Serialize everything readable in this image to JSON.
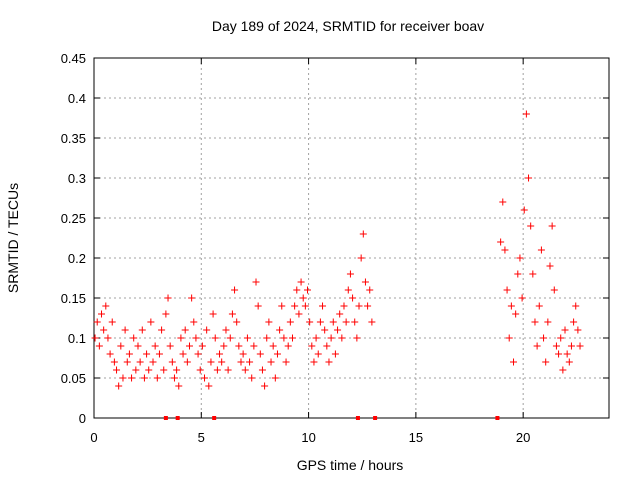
{
  "chart_data": {
    "type": "scatter",
    "title": "Day 189 of 2024, SRMTID for receiver boav",
    "xlabel": "GPS time / hours",
    "ylabel": "SRMTID / TECUs",
    "xlim": [
      0,
      24
    ],
    "ylim": [
      0,
      0.45
    ],
    "grid": true,
    "x_ticks": [
      0,
      5,
      10,
      15,
      20
    ],
    "x_tick_labels": [
      "0",
      "5",
      "10",
      "15",
      "20"
    ],
    "y_ticks": [
      0,
      0.05,
      0.1,
      0.15,
      0.2,
      0.25,
      0.3,
      0.35,
      0.4,
      0.45
    ],
    "y_tick_labels": [
      "0",
      "0.05",
      "0.1",
      "0.15",
      "0.2",
      "0.25",
      "0.3",
      "0.35",
      "0.4",
      "0.45"
    ],
    "marker": "+",
    "color": "#ff0000",
    "series": [
      {
        "name": "SRMTID",
        "points": [
          [
            0.05,
            0.1
          ],
          [
            0.15,
            0.12
          ],
          [
            0.25,
            0.09
          ],
          [
            0.35,
            0.13
          ],
          [
            0.45,
            0.11
          ],
          [
            0.55,
            0.14
          ],
          [
            0.65,
            0.1
          ],
          [
            0.75,
            0.08
          ],
          [
            0.85,
            0.12
          ],
          [
            0.95,
            0.07
          ],
          [
            1.05,
            0.06
          ],
          [
            1.15,
            0.04
          ],
          [
            1.25,
            0.09
          ],
          [
            1.35,
            0.05
          ],
          [
            1.45,
            0.11
          ],
          [
            1.55,
            0.07
          ],
          [
            1.65,
            0.08
          ],
          [
            1.75,
            0.05
          ],
          [
            1.85,
            0.1
          ],
          [
            1.95,
            0.06
          ],
          [
            2.05,
            0.09
          ],
          [
            2.15,
            0.07
          ],
          [
            2.25,
            0.11
          ],
          [
            2.35,
            0.05
          ],
          [
            2.45,
            0.08
          ],
          [
            2.55,
            0.06
          ],
          [
            2.65,
            0.12
          ],
          [
            2.75,
            0.07
          ],
          [
            2.85,
            0.09
          ],
          [
            2.95,
            0.05
          ],
          [
            3.05,
            0.08
          ],
          [
            3.15,
            0.11
          ],
          [
            3.25,
            0.06
          ],
          [
            3.35,
            0.13
          ],
          [
            3.45,
            0.15
          ],
          [
            3.55,
            0.09
          ],
          [
            3.65,
            0.07
          ],
          [
            3.75,
            0.05
          ],
          [
            3.85,
            0.06
          ],
          [
            3.95,
            0.04
          ],
          [
            4.05,
            0.1
          ],
          [
            4.15,
            0.08
          ],
          [
            4.25,
            0.11
          ],
          [
            4.35,
            0.07
          ],
          [
            4.45,
            0.09
          ],
          [
            4.55,
            0.15
          ],
          [
            4.65,
            0.12
          ],
          [
            4.75,
            0.1
          ],
          [
            4.85,
            0.08
          ],
          [
            4.95,
            0.06
          ],
          [
            5.05,
            0.09
          ],
          [
            5.15,
            0.05
          ],
          [
            5.25,
            0.11
          ],
          [
            5.35,
            0.04
          ],
          [
            5.45,
            0.07
          ],
          [
            5.55,
            0.13
          ],
          [
            5.65,
            0.1
          ],
          [
            5.75,
            0.06
          ],
          [
            5.85,
            0.08
          ],
          [
            5.95,
            0.07
          ],
          [
            6.05,
            0.09
          ],
          [
            6.15,
            0.11
          ],
          [
            6.25,
            0.06
          ],
          [
            6.35,
            0.1
          ],
          [
            6.45,
            0.13
          ],
          [
            6.55,
            0.16
          ],
          [
            6.65,
            0.12
          ],
          [
            6.75,
            0.09
          ],
          [
            6.85,
            0.07
          ],
          [
            6.95,
            0.08
          ],
          [
            7.05,
            0.06
          ],
          [
            7.15,
            0.1
          ],
          [
            7.25,
            0.07
          ],
          [
            7.35,
            0.05
          ],
          [
            7.45,
            0.09
          ],
          [
            7.55,
            0.17
          ],
          [
            7.65,
            0.14
          ],
          [
            7.75,
            0.08
          ],
          [
            7.85,
            0.06
          ],
          [
            7.95,
            0.04
          ],
          [
            8.05,
            0.1
          ],
          [
            8.15,
            0.12
          ],
          [
            8.25,
            0.07
          ],
          [
            8.35,
            0.09
          ],
          [
            8.45,
            0.05
          ],
          [
            8.55,
            0.08
          ],
          [
            8.65,
            0.11
          ],
          [
            8.75,
            0.14
          ],
          [
            8.85,
            0.1
          ],
          [
            8.95,
            0.07
          ],
          [
            9.05,
            0.09
          ],
          [
            9.15,
            0.12
          ],
          [
            9.25,
            0.1
          ],
          [
            9.35,
            0.14
          ],
          [
            9.45,
            0.16
          ],
          [
            9.55,
            0.13
          ],
          [
            9.65,
            0.17
          ],
          [
            9.75,
            0.15
          ],
          [
            9.85,
            0.14
          ],
          [
            9.95,
            0.16
          ],
          [
            10.05,
            0.12
          ],
          [
            10.15,
            0.09
          ],
          [
            10.25,
            0.07
          ],
          [
            10.35,
            0.1
          ],
          [
            10.45,
            0.08
          ],
          [
            10.55,
            0.12
          ],
          [
            10.65,
            0.14
          ],
          [
            10.75,
            0.11
          ],
          [
            10.85,
            0.09
          ],
          [
            10.95,
            0.07
          ],
          [
            11.05,
            0.1
          ],
          [
            11.15,
            0.12
          ],
          [
            11.25,
            0.08
          ],
          [
            11.35,
            0.11
          ],
          [
            11.45,
            0.13
          ],
          [
            11.55,
            0.1
          ],
          [
            11.65,
            0.14
          ],
          [
            11.75,
            0.12
          ],
          [
            11.85,
            0.16
          ],
          [
            11.95,
            0.18
          ],
          [
            12.05,
            0.15
          ],
          [
            12.15,
            0.12
          ],
          [
            12.25,
            0.1
          ],
          [
            12.35,
            0.14
          ],
          [
            12.45,
            0.2
          ],
          [
            12.55,
            0.23
          ],
          [
            12.65,
            0.17
          ],
          [
            12.75,
            0.14
          ],
          [
            12.85,
            0.16
          ],
          [
            12.95,
            0.12
          ],
          [
            18.95,
            0.22
          ],
          [
            19.05,
            0.27
          ],
          [
            19.15,
            0.21
          ],
          [
            19.25,
            0.16
          ],
          [
            19.35,
            0.1
          ],
          [
            19.45,
            0.14
          ],
          [
            19.55,
            0.07
          ],
          [
            19.65,
            0.13
          ],
          [
            19.75,
            0.18
          ],
          [
            19.85,
            0.2
          ],
          [
            19.95,
            0.15
          ],
          [
            20.05,
            0.26
          ],
          [
            20.15,
            0.38
          ],
          [
            20.25,
            0.3
          ],
          [
            20.35,
            0.24
          ],
          [
            20.45,
            0.18
          ],
          [
            20.55,
            0.12
          ],
          [
            20.65,
            0.09
          ],
          [
            20.75,
            0.14
          ],
          [
            20.85,
            0.21
          ],
          [
            20.95,
            0.1
          ],
          [
            21.05,
            0.07
          ],
          [
            21.15,
            0.12
          ],
          [
            21.25,
            0.19
          ],
          [
            21.35,
            0.24
          ],
          [
            21.45,
            0.16
          ],
          [
            21.55,
            0.09
          ],
          [
            21.65,
            0.08
          ],
          [
            21.75,
            0.1
          ],
          [
            21.85,
            0.06
          ],
          [
            21.95,
            0.11
          ],
          [
            22.05,
            0.08
          ],
          [
            22.15,
            0.07
          ],
          [
            22.25,
            0.09
          ],
          [
            22.35,
            0.12
          ],
          [
            22.45,
            0.14
          ],
          [
            22.55,
            0.11
          ],
          [
            22.65,
            0.09
          ]
        ]
      },
      {
        "name": "zero-value markers",
        "points": [
          [
            3.35,
            0
          ],
          [
            3.9,
            0
          ],
          [
            5.6,
            0
          ],
          [
            12.3,
            0
          ],
          [
            13.1,
            0
          ],
          [
            18.8,
            0
          ]
        ]
      }
    ]
  }
}
